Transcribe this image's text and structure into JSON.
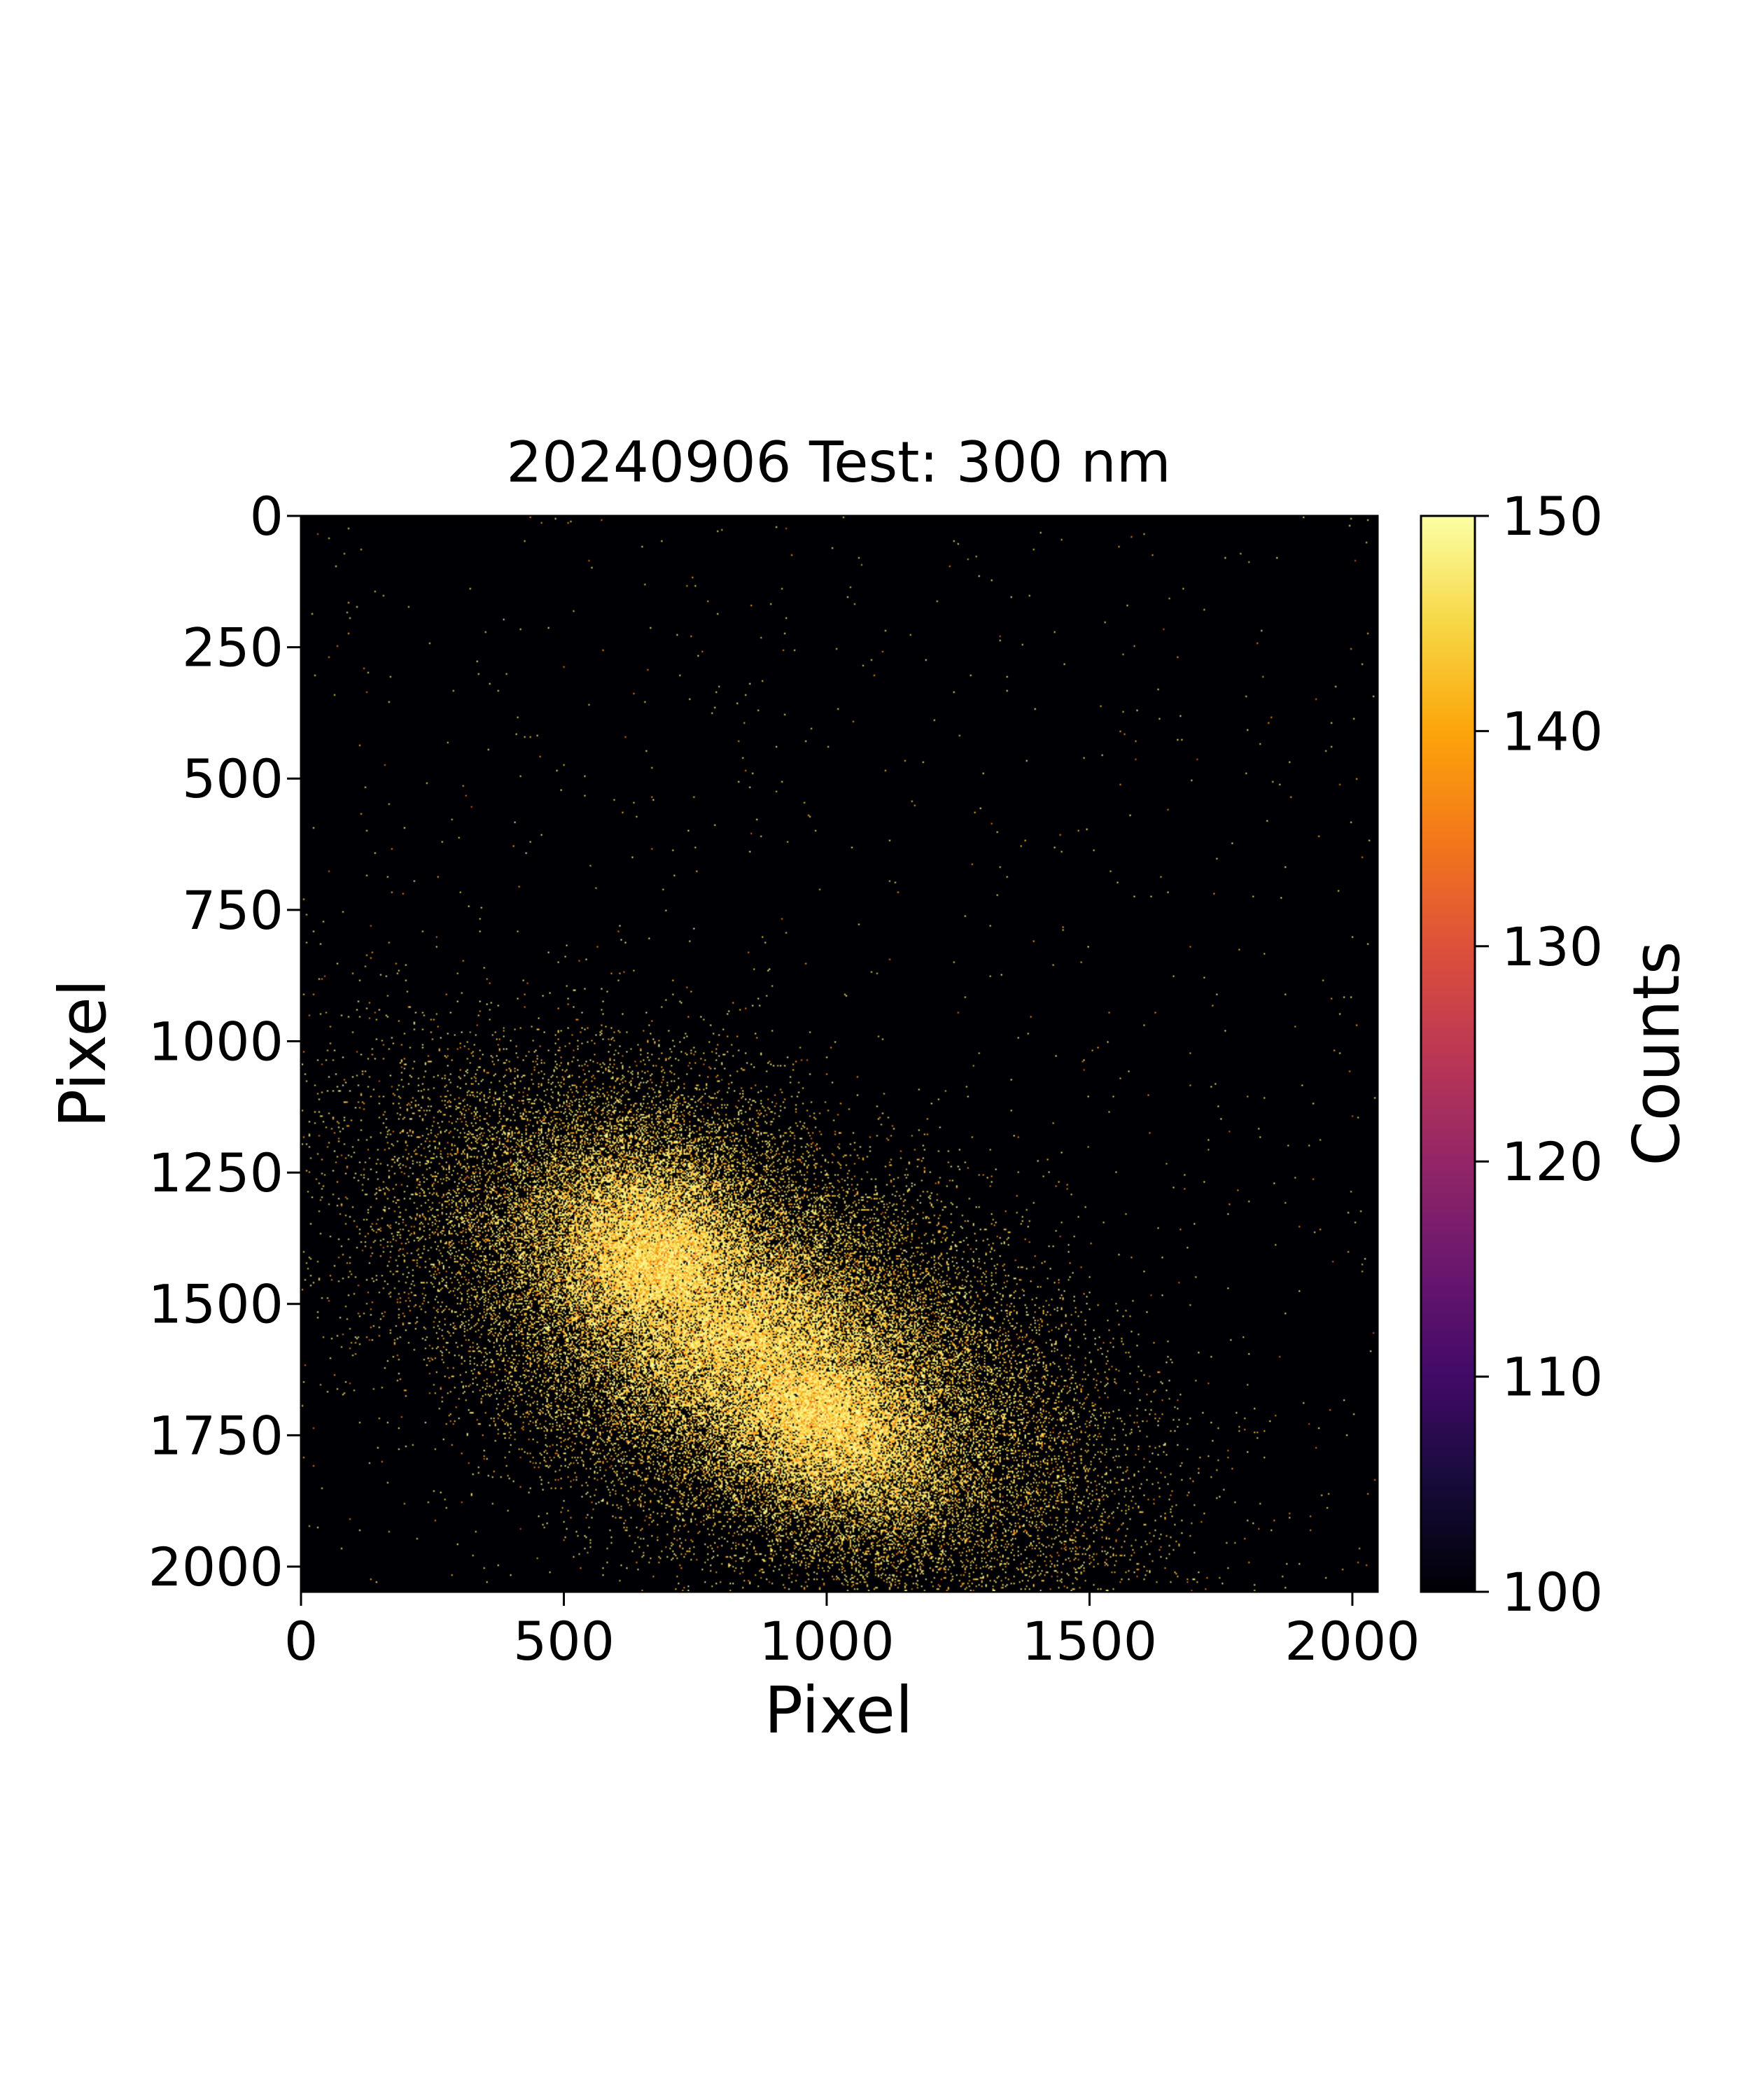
{
  "chart_data": {
    "type": "heatmap",
    "title": "20240906 Test: 300 nm",
    "xlabel": "Pixel",
    "ylabel": "Pixel",
    "xlim": [
      0,
      2048
    ],
    "ylim": [
      2048,
      0
    ],
    "xticks": [
      0,
      500,
      1000,
      1500,
      2000
    ],
    "yticks": [
      0,
      250,
      500,
      750,
      1000,
      1250,
      1500,
      1750,
      2000
    ],
    "grid": false,
    "colormap": "inferno",
    "colorbar": {
      "label": "Counts",
      "min": 100,
      "max": 150,
      "ticks": [
        100,
        110,
        120,
        130,
        140,
        150
      ]
    },
    "intensity_features": [
      {
        "feature": "main bright blob",
        "center_x": 850,
        "center_y": 1570,
        "sigma_major": 330,
        "sigma_minor": 165,
        "orientation": "tilted, descending to the right",
        "peak_counts": 150
      },
      {
        "feature": "upper-left lobe",
        "center_x": 680,
        "center_y": 1420,
        "sigma_major": 190,
        "sigma_minor": 150,
        "peak_counts": 150
      },
      {
        "feature": "lower lobe",
        "center_x": 980,
        "center_y": 1700,
        "sigma_major": 210,
        "sigma_minor": 130,
        "peak_counts": 150
      },
      {
        "feature": "background",
        "counts": 100
      }
    ]
  }
}
